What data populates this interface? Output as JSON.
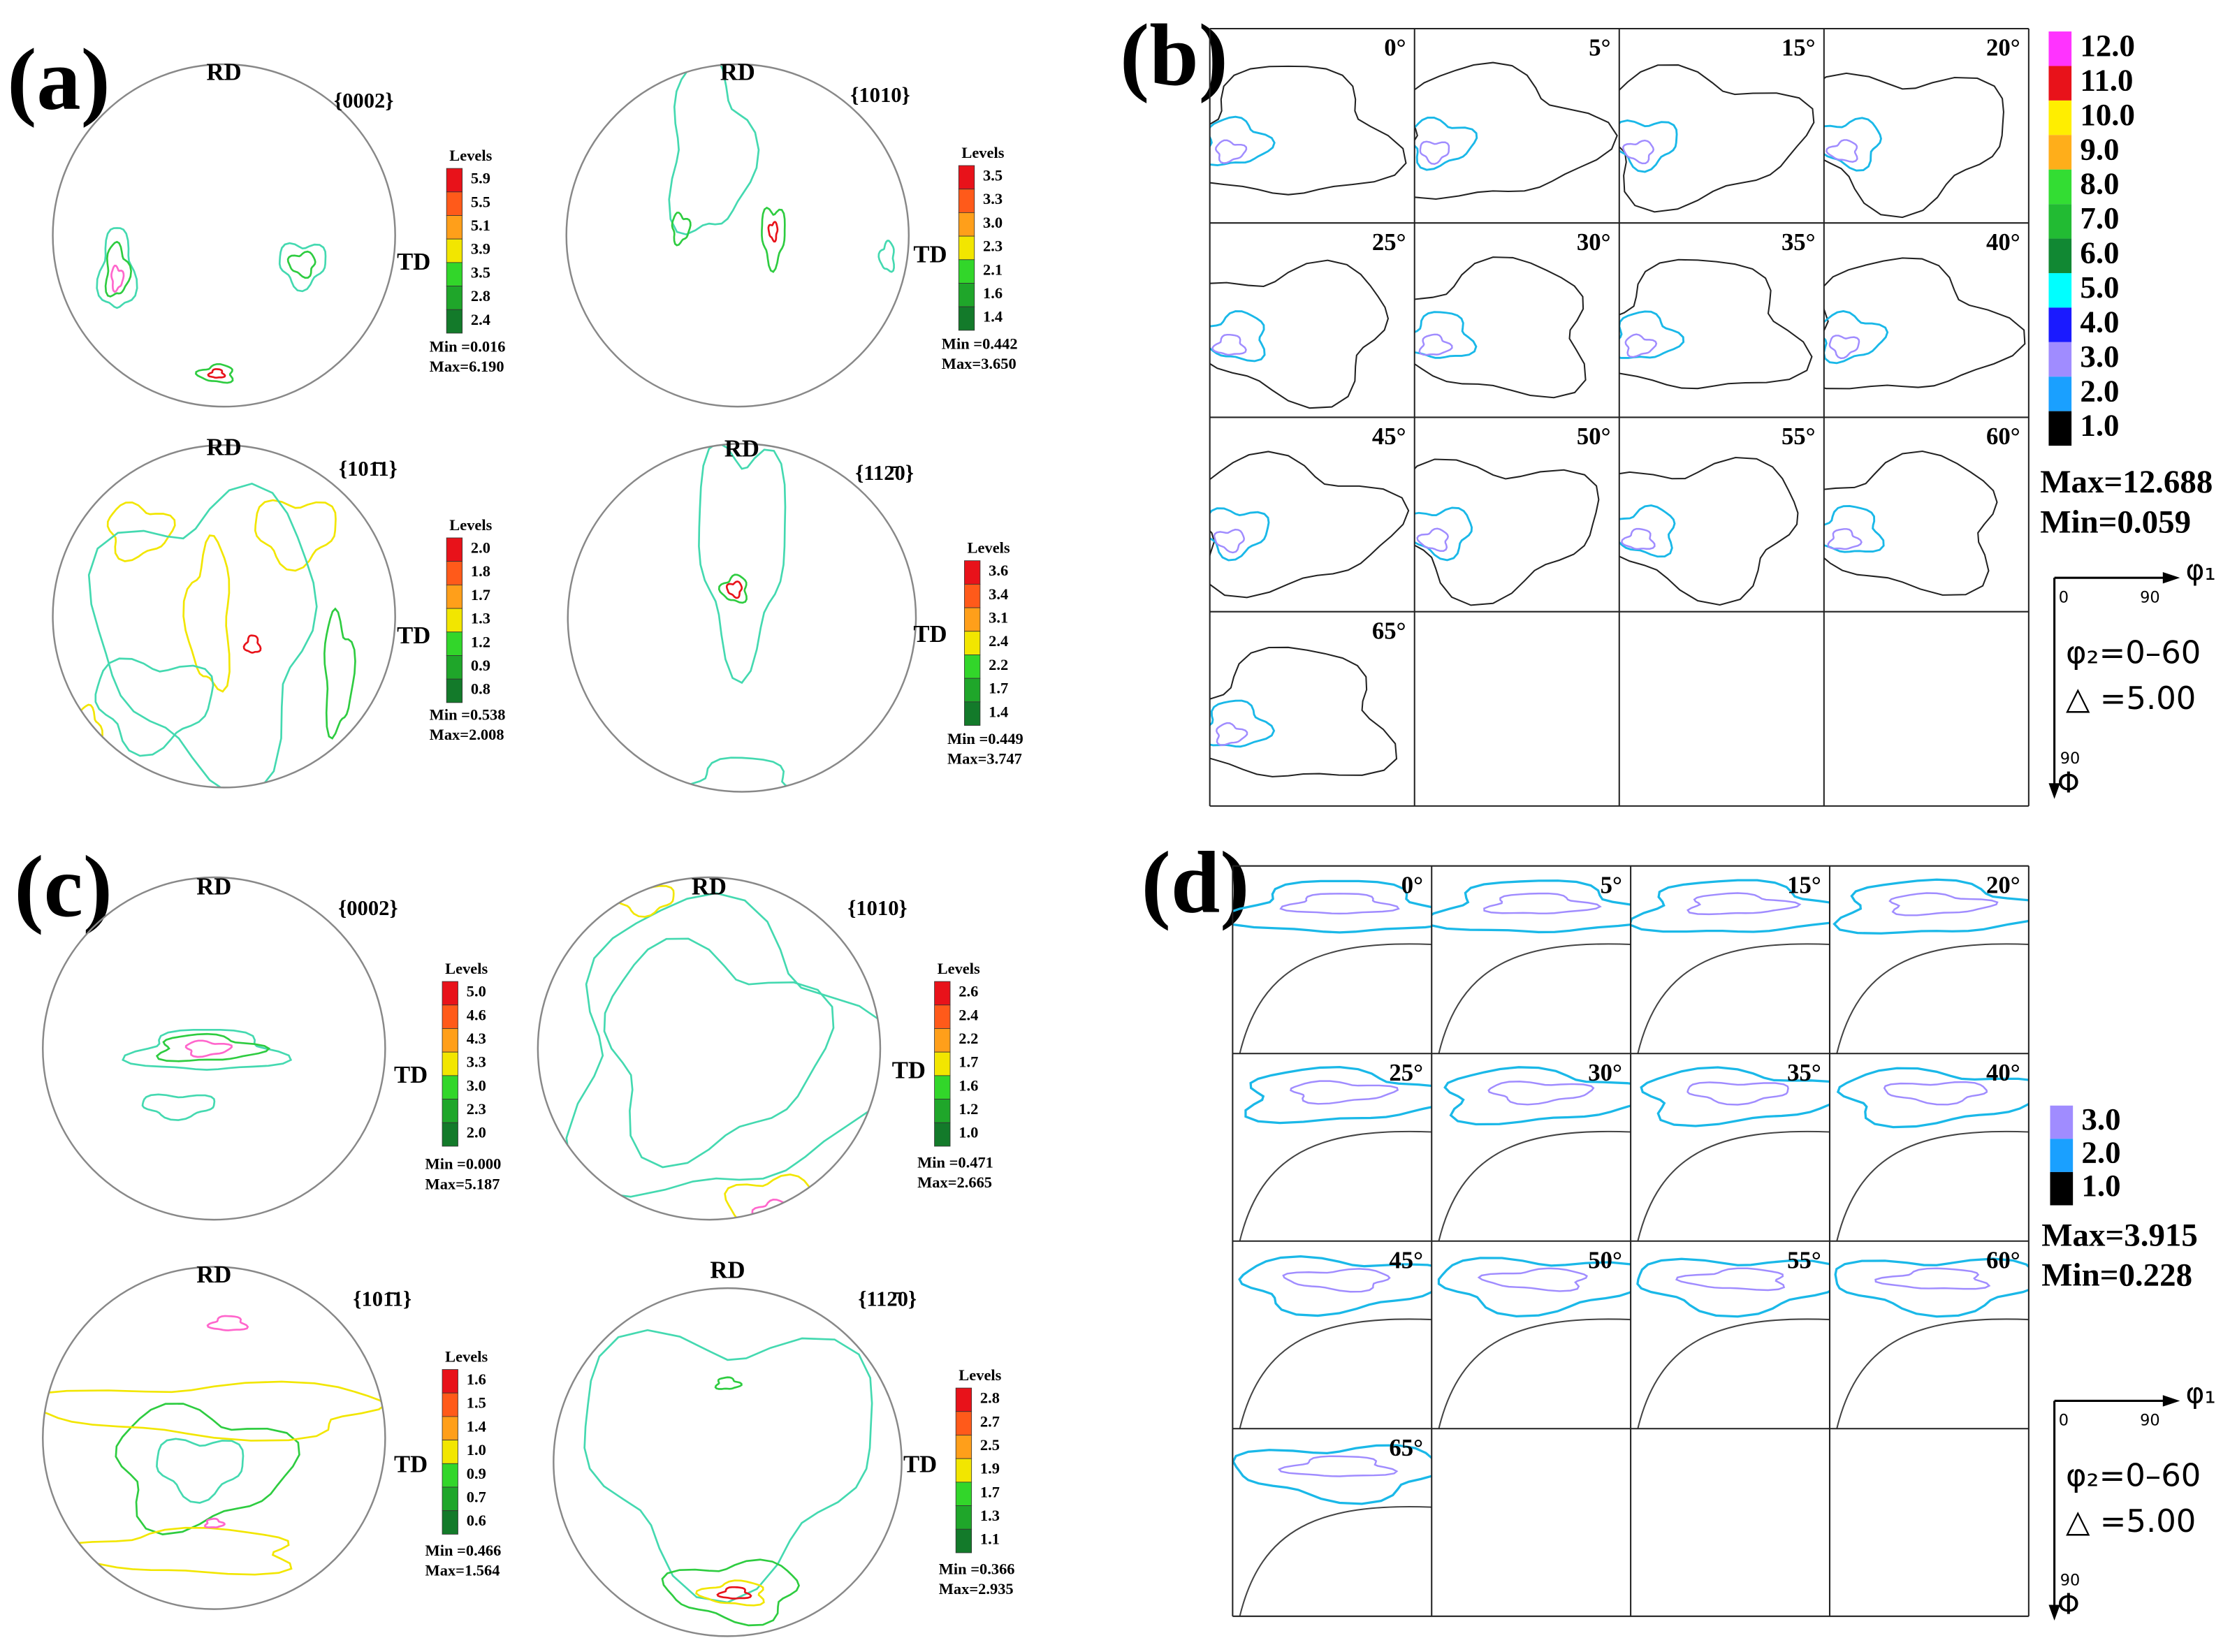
{
  "level_colors": [
    "#e8121a",
    "#ff5a1a",
    "#ff9f1a",
    "#f2e600",
    "#32d62a",
    "#1fa62a",
    "#137a2a"
  ],
  "pole_figure_panels": [
    {
      "label": "(a)",
      "figures": [
        {
          "rd": "RD",
          "plane": "{0002}",
          "td": "TD",
          "levels_title": "Levels",
          "levels": [
            "5.9",
            "5.5",
            "5.1",
            "3.9",
            "3.5",
            "2.8",
            "2.4"
          ],
          "min": "Min =0.016",
          "max": "Max=6.190"
        },
        {
          "rd": "RD",
          "plane": "{1010}",
          "td": "TD",
          "levels_title": "Levels",
          "levels": [
            "3.5",
            "3.3",
            "3.0",
            "2.3",
            "2.1",
            "1.6",
            "1.4"
          ],
          "min": "Min =0.442",
          "max": "Max=3.650"
        },
        {
          "rd": "RD",
          "plane": "{101̄1}",
          "td": "TD",
          "levels_title": "Levels",
          "levels": [
            "2.0",
            "1.8",
            "1.7",
            "1.3",
            "1.2",
            "0.9",
            "0.8"
          ],
          "min": "Min =0.538",
          "max": "Max=2.008"
        },
        {
          "rd": "RD",
          "plane": "{112̄0}",
          "td": "TD",
          "levels_title": "Levels",
          "levels": [
            "3.6",
            "3.4",
            "3.1",
            "2.4",
            "2.2",
            "1.7",
            "1.4"
          ],
          "min": "Min =0.449",
          "max": "Max=3.747"
        }
      ]
    },
    {
      "label": "(c)",
      "figures": [
        {
          "rd": "RD",
          "plane": "{0002}",
          "td": "TD",
          "levels_title": "Levels",
          "levels": [
            "5.0",
            "4.6",
            "4.3",
            "3.3",
            "3.0",
            "2.3",
            "2.0"
          ],
          "min": "Min =0.000",
          "max": "Max=5.187"
        },
        {
          "rd": "RD",
          "plane": "{1010}",
          "td": "TD",
          "levels_title": "Levels",
          "levels": [
            "2.6",
            "2.4",
            "2.2",
            "1.7",
            "1.6",
            "1.2",
            "1.0"
          ],
          "min": "Min =0.471",
          "max": "Max=2.665"
        },
        {
          "rd": "RD",
          "plane": "{101̄1}",
          "td": "TD",
          "levels_title": "Levels",
          "levels": [
            "1.6",
            "1.5",
            "1.4",
            "1.0",
            "0.9",
            "0.7",
            "0.6"
          ],
          "min": "Min =0.466",
          "max": "Max=1.564"
        },
        {
          "rd": "RD",
          "plane": "{112̄0}",
          "td": "TD",
          "levels_title": "Levels",
          "levels": [
            "2.8",
            "2.7",
            "2.5",
            "1.9",
            "1.7",
            "1.3",
            "1.1"
          ],
          "min": "Min =0.366",
          "max": "Max=2.935"
        }
      ]
    }
  ],
  "odf_panels": [
    {
      "label": "(b)",
      "sections": [
        "0°",
        "5°",
        "15°",
        "20°",
        "25°",
        "30°",
        "35°",
        "40°",
        "45°",
        "50°",
        "55°",
        "60°",
        "65°"
      ],
      "legend": [
        "12.0",
        "11.0",
        "10.0",
        "9.0",
        "8.0",
        "7.0",
        "6.0",
        "5.0",
        "4.0",
        "3.0",
        "2.0",
        "1.0"
      ],
      "legend_colors": [
        "#ff33ff",
        "#e8121a",
        "#ffee00",
        "#ffae1a",
        "#33dd33",
        "#22bb33",
        "#118833",
        "#00ffff",
        "#1a1aff",
        "#a08cff",
        "#1aa0ff",
        "#000000"
      ],
      "max": "Max=12.688",
      "min": "Min=0.059",
      "phi1": "φ₁",
      "phi1_start": "0",
      "phi1_end": "90",
      "phi": "Φ",
      "phi_end": "90",
      "phi2_range": "φ₂=0–60",
      "step": "△ =5.00"
    },
    {
      "label": "(d)",
      "sections": [
        "0°",
        "5°",
        "15°",
        "20°",
        "25°",
        "30°",
        "35°",
        "40°",
        "45°",
        "50°",
        "55°",
        "60°",
        "65°"
      ],
      "legend": [
        "3.0",
        "2.0",
        "1.0"
      ],
      "legend_colors": [
        "#a08cff",
        "#1aa0ff",
        "#000000"
      ],
      "max": "Max=3.915",
      "min": "Min=0.228",
      "phi1": "φ₁",
      "phi1_start": "0",
      "phi1_end": "90",
      "phi": "Φ",
      "phi_end": "90",
      "phi2_range": "φ₂=0–60",
      "step": "△ =5.00"
    }
  ]
}
